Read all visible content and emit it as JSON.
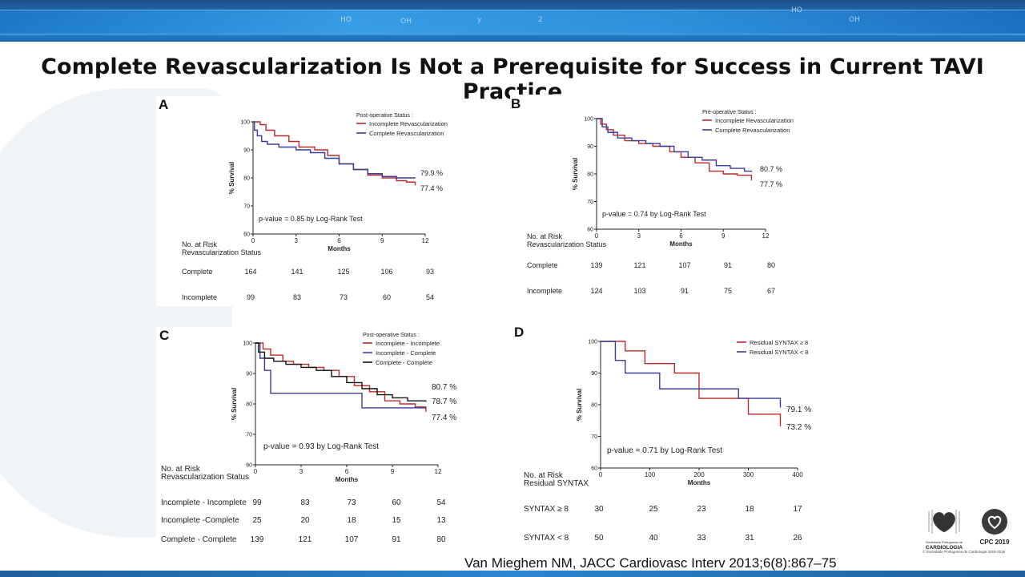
{
  "title": "Complete Revascularization Is Not a Prerequisite for Success in Current TAVI  Practice",
  "citation": "Van Mieghem NM, JACC Cardiovasc Interv 2013;6(8):867–75",
  "logos": {
    "spc_name": "CARDIOLOGIA",
    "spc_small": "Sociedade Portuguesa de",
    "cpc_name": "CPC 2019",
    "footer": "© Sociedade Portuguesa de Cardiologia 2018-2019"
  },
  "chart_data": [
    {
      "panel": "A",
      "type": "line",
      "ylabel": "% Survival",
      "xlabel": "Months",
      "xlim": [
        0,
        12
      ],
      "ylim": [
        60,
        100
      ],
      "xticks": [
        0,
        3,
        6,
        9,
        12
      ],
      "yticks": [
        60,
        70,
        80,
        90,
        100
      ],
      "legend_title": "Post-operative Status :",
      "legend_position": "top-right",
      "annotation": "p-value = 0.85 by Log-Rank Test",
      "end_labels": [
        "79.9 %",
        "77.4 %"
      ],
      "series": [
        {
          "name": "Incomplete Revascularization",
          "color": "#c0282d",
          "x": [
            0,
            0.5,
            0.9,
            1.5,
            2.5,
            3.2,
            4.3,
            5.2,
            6.0,
            7.0,
            8.0,
            9.0,
            10.0,
            10.7,
            11.3
          ],
          "y": [
            100,
            99,
            97,
            95,
            93,
            91,
            90,
            88,
            85,
            83,
            81,
            80,
            79,
            78.5,
            77.4
          ]
        },
        {
          "name": "Complete Revascularization",
          "color": "#3a3d9a",
          "x": [
            0,
            0.1,
            0.3,
            0.6,
            1.0,
            1.8,
            3.0,
            4.0,
            5.0,
            6.0,
            7.0,
            8.0,
            9.0,
            10.0,
            11.3
          ],
          "y": [
            100,
            97,
            95,
            93,
            92,
            91,
            90,
            89,
            87,
            85,
            83,
            81.5,
            80.5,
            80,
            79.9
          ]
        }
      ],
      "risk_table": {
        "header": [
          "No. at Risk",
          "Revascularization Status"
        ],
        "rows": [
          {
            "label": "Complete",
            "values": [
              "164",
              "141",
              "125",
              "106",
              "93"
            ]
          },
          {
            "label": "Incomplete",
            "values": [
              "99",
              "83",
              "73",
              "60",
              "54"
            ]
          }
        ]
      }
    },
    {
      "panel": "B",
      "type": "line",
      "ylabel": "% Survival",
      "xlabel": "Months",
      "xlim": [
        0,
        12
      ],
      "ylim": [
        60,
        100
      ],
      "xticks": [
        0,
        3,
        6,
        9,
        12
      ],
      "yticks": [
        60,
        70,
        80,
        90,
        100
      ],
      "legend_title": "Pre-operative Status :",
      "legend_position": "top-right",
      "annotation": "p-value = 0.74 by Log-Rank Test",
      "end_labels": [
        "80.7 %",
        "77.7 %"
      ],
      "series": [
        {
          "name": "Incomplete Revascularization",
          "color": "#c0282d",
          "x": [
            0,
            0.3,
            0.7,
            1.2,
            2.0,
            3.0,
            4.0,
            5.2,
            6.0,
            7.0,
            8.0,
            9.0,
            10.0,
            11.0
          ],
          "y": [
            100,
            98,
            96,
            94,
            92,
            91,
            90,
            88,
            86,
            84,
            81,
            80,
            79.5,
            77.7
          ]
        },
        {
          "name": "Complete Revascularization",
          "color": "#3a3d9a",
          "x": [
            0,
            0.4,
            0.8,
            1.5,
            2.5,
            3.5,
            4.5,
            5.5,
            6.5,
            7.5,
            8.5,
            9.5,
            10.5,
            11.0
          ],
          "y": [
            100,
            97,
            95,
            93,
            92,
            91,
            90,
            88,
            86,
            85,
            83,
            82,
            81,
            80.7
          ]
        }
      ],
      "risk_table": {
        "header": [
          "No. at Risk",
          "Revascularization Status"
        ],
        "rows": [
          {
            "label": "Complete",
            "values": [
              "139",
              "121",
              "107",
              "91",
              "80"
            ]
          },
          {
            "label": "Incomplete",
            "values": [
              "124",
              "103",
              "91",
              "75",
              "67"
            ]
          }
        ]
      }
    },
    {
      "panel": "C",
      "type": "line",
      "ylabel": "% Survival",
      "xlabel": "Months",
      "xlim": [
        0,
        12
      ],
      "ylim": [
        60,
        100
      ],
      "xticks": [
        0,
        3,
        6,
        9,
        12
      ],
      "yticks": [
        60,
        70,
        80,
        90,
        100
      ],
      "legend_title": "Post-operative Status :",
      "legend_position": "top-right",
      "annotation": "p-value = 0.93 by Log-Rank Test",
      "end_labels": [
        "80.7 %",
        "78.7 %",
        "77.4 %"
      ],
      "series": [
        {
          "name": "Incomplete - Incomplete",
          "color": "#c0282d",
          "x": [
            0,
            0.5,
            1.0,
            1.8,
            2.5,
            3.5,
            4.5,
            5.5,
            6.5,
            7.5,
            8.5,
            9.5,
            10.5,
            11.2
          ],
          "y": [
            100,
            98,
            96,
            94,
            93,
            92,
            91,
            89,
            86,
            84,
            81,
            80,
            79,
            77.4
          ]
        },
        {
          "name": "Incomplete - Complete",
          "color": "#3a3d9a",
          "x": [
            0,
            0.3,
            0.6,
            1.0,
            2.0,
            4.0,
            6.0,
            6.7,
            7.0,
            8.0,
            9.0,
            10.0,
            11.2
          ],
          "y": [
            100,
            95,
            91,
            83.5,
            83.5,
            83.5,
            83.5,
            83.5,
            78.7,
            78.7,
            78.7,
            78.7,
            78.7
          ]
        },
        {
          "name": "Complete - Complete",
          "color": "#111111",
          "x": [
            0,
            0.2,
            0.6,
            1.2,
            2.0,
            3.0,
            4.0,
            5.0,
            6.0,
            7.0,
            8.0,
            9.0,
            10.0,
            11.2
          ],
          "y": [
            100,
            97,
            95,
            94,
            93,
            92,
            91,
            89,
            87,
            85,
            83,
            82,
            81,
            80.7
          ]
        }
      ],
      "risk_table": {
        "header": [
          "No. at Risk",
          "Revascularization Status"
        ],
        "rows": [
          {
            "label": "Incomplete - Incomplete",
            "values": [
              "99",
              "83",
              "73",
              "60",
              "54"
            ]
          },
          {
            "label": "Incomplete -Complete",
            "values": [
              "25",
              "20",
              "18",
              "15",
              "13"
            ]
          },
          {
            "label": "Complete - Complete",
            "values": [
              "139",
              "121",
              "107",
              "91",
              "80"
            ]
          }
        ]
      }
    },
    {
      "panel": "D",
      "type": "line",
      "ylabel": "% Survival",
      "xlabel": "Months",
      "xlim": [
        0,
        400
      ],
      "ylim": [
        60,
        100
      ],
      "xticks": [
        0,
        100,
        200,
        300,
        400
      ],
      "yticks": [
        60,
        70,
        80,
        90,
        100
      ],
      "legend_title": "",
      "legend_position": "top-right",
      "annotation": "p-value = 0.71 by Log-Rank Test",
      "end_labels": [
        "79.1 %",
        "73.2 %"
      ],
      "series": [
        {
          "name": "Residual SYNTAX ≥ 8",
          "color": "#c0282d",
          "x": [
            0,
            30,
            50,
            70,
            90,
            120,
            150,
            190,
            200,
            260,
            300,
            340,
            365
          ],
          "y": [
            100,
            100,
            97,
            97,
            93,
            93,
            90,
            90,
            82,
            82,
            77,
            77,
            73.2
          ]
        },
        {
          "name": "Residual SYNTAX < 8",
          "color": "#3a3d9a",
          "x": [
            0,
            20,
            30,
            50,
            70,
            120,
            150,
            200,
            250,
            280,
            320,
            365
          ],
          "y": [
            100,
            100,
            94,
            90,
            90,
            85,
            85,
            85,
            85,
            82,
            82,
            79.1
          ]
        }
      ],
      "risk_table": {
        "header": [
          "No. at Risk",
          "Residual SYNTAX"
        ],
        "rows": [
          {
            "label": "SYNTAX ≥ 8",
            "values": [
              "30",
              "25",
              "23",
              "18",
              "17"
            ]
          },
          {
            "label": "SYNTAX < 8",
            "values": [
              "50",
              "40",
              "33",
              "31",
              "26"
            ]
          }
        ]
      }
    }
  ]
}
